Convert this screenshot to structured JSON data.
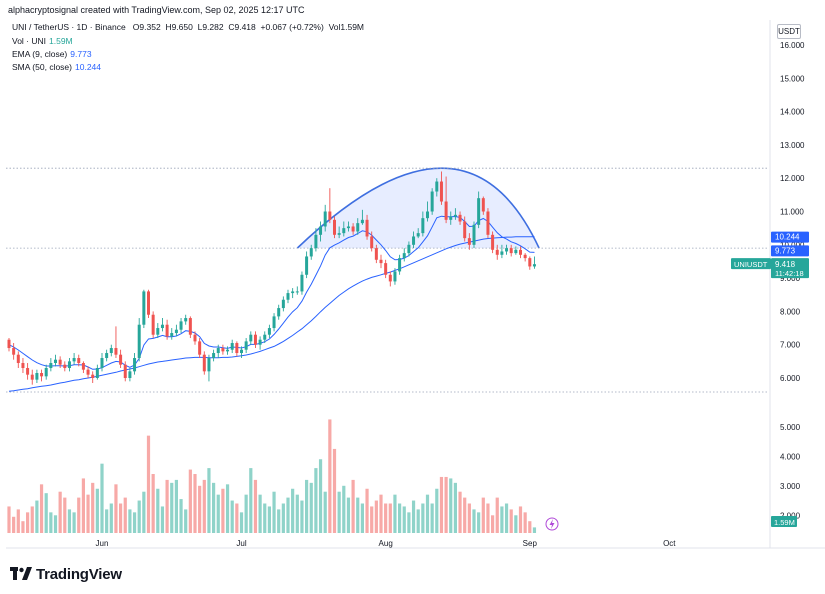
{
  "header": {
    "credit": "alphacryptosignal created with TradingView.com, Sep 02, 2025 12:17 UTC",
    "symbol": "UNI / TetherUS · 1D · Binance",
    "o_label": "O",
    "o": "9.352",
    "h_label": "H",
    "h": "9.650",
    "l_label": "L",
    "l": "9.282",
    "c_label": "C",
    "c": "9.418",
    "change": "+0.067 (+0.72%)",
    "vol_label": "Vol",
    "vol": "1.59M"
  },
  "indicators": {
    "vol_label": "Vol · UNI",
    "vol_value": "1.59M",
    "ema_label": "EMA (9, close)",
    "ema_value": "9.773",
    "sma_label": "SMA (50, close)",
    "sma_value": "10.244"
  },
  "currency": "USDT",
  "colors": {
    "up": "#26a69a",
    "down": "#ef5350",
    "up_vol": "#8fd3c9",
    "down_vol": "#f7a9a7",
    "ema": "#2962ff",
    "sma": "#2962ff",
    "pattern": "#3f6fe0",
    "pattern_fill": "#dfe7ff",
    "sma_tag": "#2962ff",
    "ema_tag": "#2962ff",
    "price_tag": "#26a69a"
  },
  "price_axis_ticks": [
    "16.000",
    "15.000",
    "14.000",
    "13.000",
    "12.000",
    "11.000",
    "10.000",
    "9.000",
    "8.000",
    "7.000",
    "6.000"
  ],
  "volume_axis_ticks": [
    "5.000",
    "4.000",
    "3.000",
    "2.000"
  ],
  "time_axis_ticks": [
    "Jun",
    "Jul",
    "Aug",
    "Sep",
    "Oct"
  ],
  "tags": {
    "sma": "10.244",
    "ema": "9.773",
    "symbol": "UNIUSDT",
    "price": "9.418",
    "countdown": "11:42:18",
    "volume": "1.59M"
  },
  "chart_data": {
    "type": "candlestick",
    "x": [
      "2025-05-12",
      "2025-05-13",
      "2025-05-14",
      "2025-05-15",
      "2025-05-16",
      "2025-05-17",
      "2025-05-18",
      "2025-05-19",
      "2025-05-20",
      "2025-05-21",
      "2025-05-22",
      "2025-05-23",
      "2025-05-24",
      "2025-05-25",
      "2025-05-26",
      "2025-05-27",
      "2025-05-28",
      "2025-05-29",
      "2025-05-30",
      "2025-05-31",
      "2025-06-01",
      "2025-06-02",
      "2025-06-03",
      "2025-06-04",
      "2025-06-05",
      "2025-06-06",
      "2025-06-07",
      "2025-06-08",
      "2025-06-09",
      "2025-06-10",
      "2025-06-11",
      "2025-06-12",
      "2025-06-13",
      "2025-06-14",
      "2025-06-15",
      "2025-06-16",
      "2025-06-17",
      "2025-06-18",
      "2025-06-19",
      "2025-06-20",
      "2025-06-21",
      "2025-06-22",
      "2025-06-23",
      "2025-06-24",
      "2025-06-25",
      "2025-06-26",
      "2025-06-27",
      "2025-06-28",
      "2025-06-29",
      "2025-06-30",
      "2025-07-01",
      "2025-07-02",
      "2025-07-03",
      "2025-07-04",
      "2025-07-05",
      "2025-07-06",
      "2025-07-07",
      "2025-07-08",
      "2025-07-09",
      "2025-07-10",
      "2025-07-11",
      "2025-07-12",
      "2025-07-13",
      "2025-07-14",
      "2025-07-15",
      "2025-07-16",
      "2025-07-17",
      "2025-07-18",
      "2025-07-19",
      "2025-07-20",
      "2025-07-21",
      "2025-07-22",
      "2025-07-23",
      "2025-07-24",
      "2025-07-25",
      "2025-07-26",
      "2025-07-27",
      "2025-07-28",
      "2025-07-29",
      "2025-07-30",
      "2025-07-31",
      "2025-08-01",
      "2025-08-02",
      "2025-08-03",
      "2025-08-04",
      "2025-08-05",
      "2025-08-06",
      "2025-08-07",
      "2025-08-08",
      "2025-08-09",
      "2025-08-10",
      "2025-08-11",
      "2025-08-12",
      "2025-08-13",
      "2025-08-14",
      "2025-08-15",
      "2025-08-16",
      "2025-08-17",
      "2025-08-18",
      "2025-08-19",
      "2025-08-20",
      "2025-08-21",
      "2025-08-22",
      "2025-08-23",
      "2025-08-24",
      "2025-08-25",
      "2025-08-26",
      "2025-08-27",
      "2025-08-28",
      "2025-08-29",
      "2025-08-30",
      "2025-08-31",
      "2025-09-01",
      "2025-09-02"
    ],
    "open": [
      7.15,
      6.9,
      6.7,
      6.45,
      6.3,
      6.1,
      5.95,
      6.15,
      6.05,
      6.3,
      6.45,
      6.55,
      6.4,
      6.3,
      6.5,
      6.6,
      6.45,
      6.25,
      6.1,
      6.0,
      6.3,
      6.6,
      6.75,
      6.9,
      6.7,
      6.4,
      6.0,
      6.2,
      6.6,
      7.6,
      8.6,
      7.9,
      7.3,
      7.5,
      7.6,
      7.25,
      7.35,
      7.45,
      7.7,
      7.8,
      7.3,
      7.1,
      6.7,
      6.2,
      6.6,
      6.75,
      6.9,
      6.8,
      6.85,
      7.05,
      6.75,
      6.85,
      7.1,
      7.3,
      7.0,
      7.15,
      7.3,
      7.5,
      7.85,
      8.1,
      8.35,
      8.55,
      8.6,
      8.6,
      9.1,
      9.65,
      9.9,
      10.3,
      10.55,
      11.0,
      10.75,
      10.3,
      10.35,
      10.5,
      10.55,
      10.4,
      10.65,
      10.75,
      10.25,
      9.9,
      9.55,
      9.45,
      9.1,
      8.9,
      9.2,
      9.6,
      9.75,
      10.0,
      10.25,
      10.35,
      10.8,
      11.0,
      11.6,
      11.9,
      11.3,
      10.75,
      10.85,
      10.9,
      10.7,
      10.2,
      10.0,
      10.6,
      11.4,
      11.0,
      10.3,
      9.85,
      9.7,
      9.8,
      9.9,
      9.75,
      9.85,
      9.7,
      9.6,
      9.35
    ],
    "close": [
      6.9,
      6.7,
      6.45,
      6.3,
      6.1,
      5.95,
      6.15,
      6.05,
      6.3,
      6.45,
      6.55,
      6.4,
      6.3,
      6.5,
      6.6,
      6.45,
      6.25,
      6.1,
      6.0,
      6.3,
      6.6,
      6.75,
      6.9,
      6.7,
      6.4,
      6.0,
      6.2,
      6.6,
      7.6,
      8.6,
      7.9,
      7.3,
      7.5,
      7.6,
      7.25,
      7.35,
      7.45,
      7.7,
      7.8,
      7.3,
      7.1,
      6.7,
      6.2,
      6.6,
      6.75,
      6.9,
      6.8,
      6.85,
      7.05,
      6.75,
      6.85,
      7.1,
      7.3,
      7.0,
      7.15,
      7.3,
      7.5,
      7.85,
      8.1,
      8.35,
      8.55,
      8.6,
      8.6,
      9.1,
      9.65,
      9.9,
      10.3,
      10.55,
      11.0,
      10.75,
      10.3,
      10.35,
      10.5,
      10.55,
      10.4,
      10.65,
      10.75,
      10.25,
      9.9,
      9.55,
      9.45,
      9.1,
      8.9,
      9.2,
      9.6,
      9.75,
      10.0,
      10.25,
      10.35,
      10.8,
      11.0,
      11.6,
      11.9,
      11.3,
      10.75,
      10.85,
      10.9,
      10.7,
      10.2,
      10.0,
      10.6,
      11.4,
      11.0,
      10.3,
      9.85,
      9.7,
      9.8,
      9.9,
      9.75,
      9.85,
      9.7,
      9.6,
      9.35,
      9.418
    ],
    "high": [
      7.2,
      7.05,
      6.8,
      6.6,
      6.45,
      6.25,
      6.25,
      6.25,
      6.4,
      6.6,
      6.7,
      6.65,
      6.5,
      6.6,
      6.75,
      6.7,
      6.5,
      6.35,
      6.2,
      6.4,
      6.75,
      6.85,
      7.0,
      7.55,
      6.85,
      6.5,
      6.3,
      6.75,
      7.8,
      8.65,
      8.65,
      8.0,
      7.65,
      7.8,
      7.75,
      7.5,
      7.6,
      7.8,
      7.9,
      7.85,
      7.4,
      7.2,
      6.8,
      6.7,
      6.85,
      7.0,
      7.0,
      6.95,
      7.15,
      7.1,
      6.95,
      7.2,
      7.4,
      7.4,
      7.25,
      7.4,
      7.6,
      7.95,
      8.2,
      8.45,
      8.65,
      8.7,
      8.75,
      9.2,
      9.8,
      10.0,
      10.5,
      10.7,
      11.2,
      11.7,
      10.85,
      10.55,
      10.7,
      10.7,
      10.65,
      10.8,
      11.05,
      10.9,
      10.4,
      10.0,
      9.7,
      9.55,
      9.2,
      9.3,
      9.7,
      9.9,
      10.1,
      10.4,
      10.5,
      11.0,
      11.3,
      11.7,
      12.0,
      12.2,
      12.05,
      11.0,
      11.1,
      11.0,
      10.85,
      10.35,
      10.7,
      11.6,
      11.45,
      11.1,
      10.4,
      10.0,
      10.0,
      10.0,
      10.0,
      9.95,
      9.95,
      9.75,
      9.65,
      9.65
    ],
    "low": [
      6.8,
      6.55,
      6.3,
      6.15,
      5.95,
      5.8,
      5.85,
      5.9,
      5.95,
      6.2,
      6.35,
      6.3,
      6.2,
      6.2,
      6.4,
      6.35,
      6.15,
      6.0,
      5.85,
      5.95,
      6.2,
      6.5,
      6.65,
      6.6,
      6.3,
      5.9,
      5.9,
      6.1,
      6.5,
      7.5,
      7.8,
      7.2,
      7.2,
      7.4,
      7.15,
      7.15,
      7.25,
      7.35,
      7.6,
      7.2,
      7.0,
      6.6,
      6.1,
      5.9,
      6.5,
      6.6,
      6.7,
      6.7,
      6.75,
      6.65,
      6.6,
      6.75,
      7.0,
      6.9,
      6.85,
      7.05,
      7.2,
      7.4,
      7.75,
      8.0,
      8.25,
      8.4,
      8.5,
      8.5,
      9.0,
      9.55,
      9.8,
      10.1,
      10.4,
      10.65,
      10.2,
      10.2,
      10.25,
      10.4,
      10.3,
      10.3,
      10.6,
      10.15,
      9.8,
      9.45,
      9.3,
      9.0,
      8.75,
      8.8,
      9.1,
      9.5,
      9.65,
      9.9,
      10.2,
      10.25,
      10.7,
      10.9,
      11.45,
      11.2,
      10.65,
      10.6,
      10.75,
      10.6,
      10.1,
      9.85,
      9.9,
      10.5,
      10.9,
      10.2,
      9.75,
      9.55,
      9.6,
      9.7,
      9.65,
      9.7,
      9.6,
      9.5,
      9.25,
      9.28
    ],
    "volume": [
      2.3,
      1.95,
      2.2,
      1.8,
      2.1,
      2.3,
      2.5,
      3.05,
      2.75,
      2.1,
      2.0,
      2.8,
      2.6,
      2.2,
      2.1,
      2.6,
      3.25,
      2.7,
      3.1,
      2.9,
      3.75,
      2.2,
      2.4,
      3.05,
      2.4,
      2.6,
      2.2,
      2.1,
      2.5,
      2.8,
      4.7,
      3.4,
      2.9,
      2.3,
      3.2,
      3.1,
      3.2,
      2.55,
      2.2,
      3.55,
      3.4,
      3.0,
      3.2,
      3.6,
      3.1,
      2.7,
      2.9,
      3.05,
      2.5,
      2.4,
      2.1,
      2.7,
      3.6,
      3.2,
      2.7,
      2.4,
      2.3,
      2.8,
      2.2,
      2.4,
      2.6,
      2.9,
      2.7,
      2.5,
      3.2,
      3.1,
      3.6,
      3.9,
      2.8,
      5.25,
      4.25,
      2.8,
      3.0,
      2.6,
      3.2,
      2.6,
      2.4,
      2.9,
      2.3,
      2.5,
      2.7,
      2.4,
      2.4,
      2.7,
      2.4,
      2.3,
      2.1,
      2.5,
      2.2,
      2.4,
      2.7,
      2.4,
      2.9,
      3.3,
      3.3,
      3.25,
      3.1,
      2.8,
      2.6,
      2.4,
      2.2,
      2.1,
      2.6,
      2.4,
      2.0,
      2.6,
      2.3,
      2.4,
      2.2,
      2.0,
      2.3,
      2.1,
      1.8,
      1.59
    ],
    "ema_9": [
      7.0,
      6.93,
      6.84,
      6.74,
      6.64,
      6.54,
      6.46,
      6.4,
      6.36,
      6.36,
      6.37,
      6.37,
      6.36,
      6.37,
      6.4,
      6.4,
      6.39,
      6.33,
      6.26,
      6.27,
      6.31,
      6.38,
      6.45,
      6.5,
      6.48,
      6.38,
      6.32,
      6.39,
      6.59,
      6.99,
      7.17,
      7.19,
      7.23,
      7.28,
      7.24,
      7.24,
      7.26,
      7.33,
      7.42,
      7.4,
      7.35,
      7.24,
      7.04,
      6.96,
      6.93,
      6.93,
      6.91,
      6.89,
      6.93,
      6.92,
      6.9,
      6.94,
      7.01,
      7.01,
      7.04,
      7.09,
      7.17,
      7.31,
      7.47,
      7.65,
      7.83,
      7.99,
      8.11,
      8.31,
      8.58,
      8.82,
      9.09,
      9.37,
      9.69,
      9.91,
      9.99,
      10.06,
      10.14,
      10.22,
      10.26,
      10.34,
      10.42,
      10.39,
      10.29,
      10.14,
      10.0,
      9.83,
      9.64,
      9.55,
      9.56,
      9.6,
      9.68,
      9.8,
      9.91,
      10.09,
      10.27,
      10.54,
      10.81,
      10.86,
      10.84,
      10.84,
      10.85,
      10.82,
      10.7,
      10.55,
      10.56,
      10.73,
      10.79,
      10.7,
      10.53,
      10.36,
      10.24,
      10.17,
      10.09,
      10.04,
      9.97,
      9.88,
      9.78,
      9.773
    ],
    "sma_50": [
      5.6,
      5.62,
      5.64,
      5.66,
      5.68,
      5.71,
      5.73,
      5.75,
      5.77,
      5.79,
      5.82,
      5.85,
      5.87,
      5.9,
      5.93,
      5.95,
      5.98,
      6.0,
      6.02,
      6.05,
      6.08,
      6.11,
      6.14,
      6.17,
      6.21,
      6.24,
      6.27,
      6.3,
      6.34,
      6.38,
      6.42,
      6.45,
      6.48,
      6.5,
      6.52,
      6.54,
      6.56,
      6.58,
      6.6,
      6.61,
      6.62,
      6.62,
      6.62,
      6.61,
      6.61,
      6.61,
      6.62,
      6.62,
      6.63,
      6.65,
      6.67,
      6.69,
      6.72,
      6.76,
      6.8,
      6.85,
      6.9,
      6.95,
      7.02,
      7.1,
      7.19,
      7.28,
      7.38,
      7.48,
      7.6,
      7.72,
      7.85,
      7.99,
      8.12,
      8.24,
      8.36,
      8.48,
      8.58,
      8.68,
      8.76,
      8.84,
      8.91,
      8.97,
      9.02,
      9.06,
      9.1,
      9.14,
      9.18,
      9.23,
      9.28,
      9.34,
      9.4,
      9.46,
      9.52,
      9.58,
      9.64,
      9.7,
      9.76,
      9.82,
      9.88,
      9.93,
      9.98,
      10.02,
      10.05,
      10.08,
      10.11,
      10.14,
      10.17,
      10.19,
      10.2,
      10.21,
      10.22,
      10.23,
      10.23,
      10.24,
      10.24,
      10.244,
      10.244,
      10.244
    ],
    "price_range": [
      5.6,
      16.4
    ],
    "volume_range": [
      1.4,
      5.6
    ],
    "grid": false,
    "pattern": {
      "type": "rounded-top arc",
      "start": [
        "2025-07-13",
        9.9
      ],
      "peak": [
        "2025-08-13",
        12.3
      ],
      "end": [
        "2025-09-03",
        9.9
      ]
    },
    "support_line": 9.9,
    "resistance_line": 12.3,
    "base_line": 5.65
  }
}
